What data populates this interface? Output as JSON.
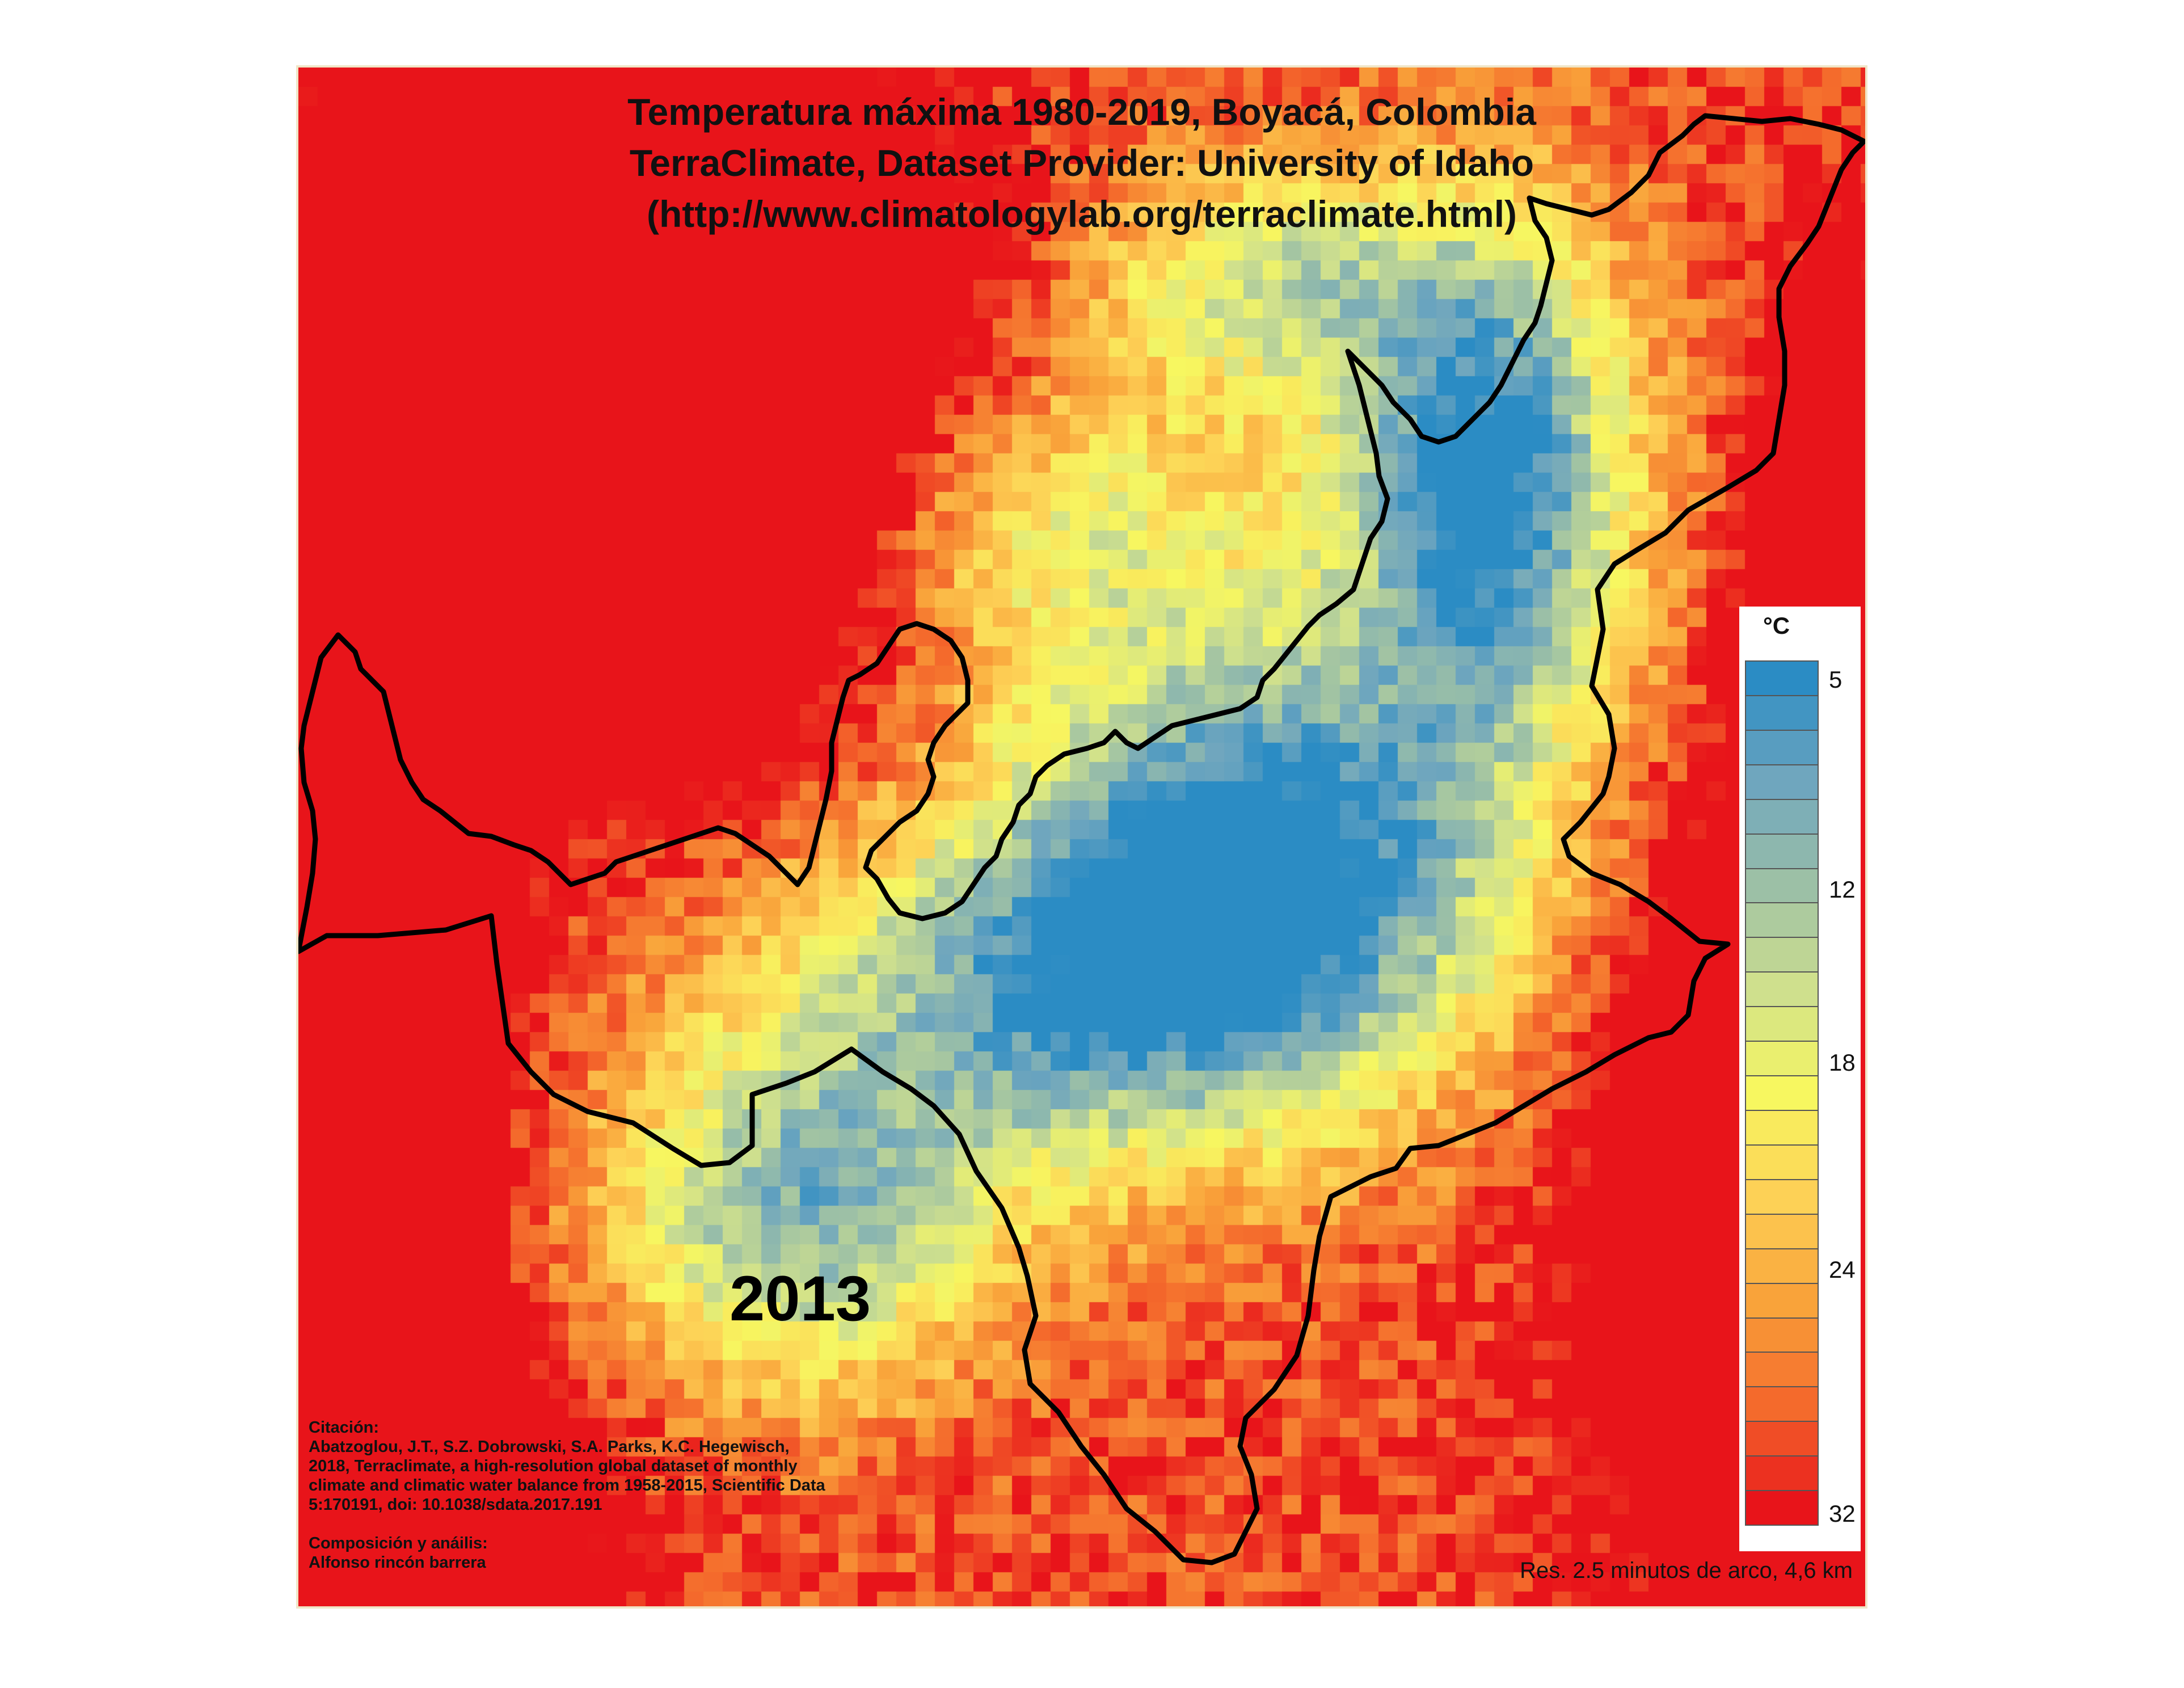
{
  "title": [
    "Temperatura máxima 1980-2019, Boyacá, Colombia",
    "TerraClimate, Dataset Provider: University of Idaho",
    "(http://www.climatologylab.org/terraclimate.html)"
  ],
  "year": "2013",
  "legend": {
    "unit": "°C",
    "ticks": [
      {
        "label": "5",
        "value": 5
      },
      {
        "label": "12",
        "value": 12
      },
      {
        "label": "18",
        "value": 18
      },
      {
        "label": "24",
        "value": 24
      },
      {
        "label": "32",
        "value": 32
      }
    ],
    "range": [
      5,
      32
    ],
    "bins": 25,
    "color_stops": [
      "#2b8cc4",
      "#6fa6be",
      "#9cc0a6",
      "#cfe08d",
      "#f7f760",
      "#fdd156",
      "#f9a33a",
      "#f46a2c",
      "#e8141a"
    ]
  },
  "citation": [
    "Citación:",
    "Abatzoglou, J.T., S.Z. Dobrowski, S.A. Parks, K.C. Hegewisch,",
    "2018, Terraclimate, a high-resolution global dataset of monthly",
    "climate and climatic water balance from 1958-2015, Scientific Data",
    " 5:170191, doi: 10.1038/sdata.2017.191",
    "",
    "Composición y anáilis:",
    "Alfonso rincón barrera"
  ],
  "resolution": "Res. 2.5 minutos de arco, 4,6 km",
  "colors": {
    "boundary": "#000000",
    "frame": "#f0e6c8"
  }
}
